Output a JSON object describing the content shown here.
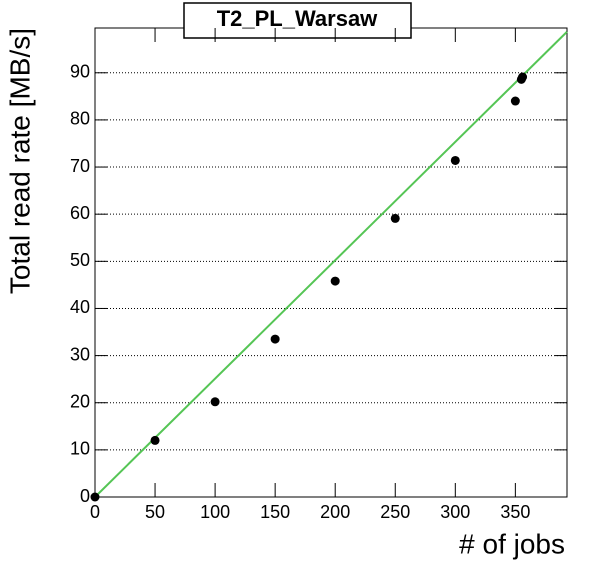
{
  "chart_data": {
    "type": "scatter",
    "title": "T2_PL_Warsaw",
    "x_label": "# of jobs",
    "y_label": "Total read rate [MB/s]",
    "series": [
      {
        "color": "#000000",
        "x": [
          0,
          50,
          100,
          150,
          200,
          250,
          300,
          350,
          355,
          356
        ],
        "values": [
          0,
          12,
          20.2,
          33.5,
          45.8,
          59.1,
          71.4,
          84,
          88.6,
          89.1
        ]
      }
    ],
    "fit": {
      "color": "#55c555",
      "x": [
        0,
        393
      ],
      "values": [
        0,
        98.7
      ]
    },
    "xlim": [
      0,
      393
    ],
    "ylim": [
      0,
      99.5
    ],
    "xticks": [
      0,
      50,
      100,
      150,
      200,
      250,
      300,
      350
    ],
    "yticks": [
      0,
      10,
      20,
      30,
      40,
      50,
      60,
      70,
      80,
      90
    ],
    "grid": true
  }
}
